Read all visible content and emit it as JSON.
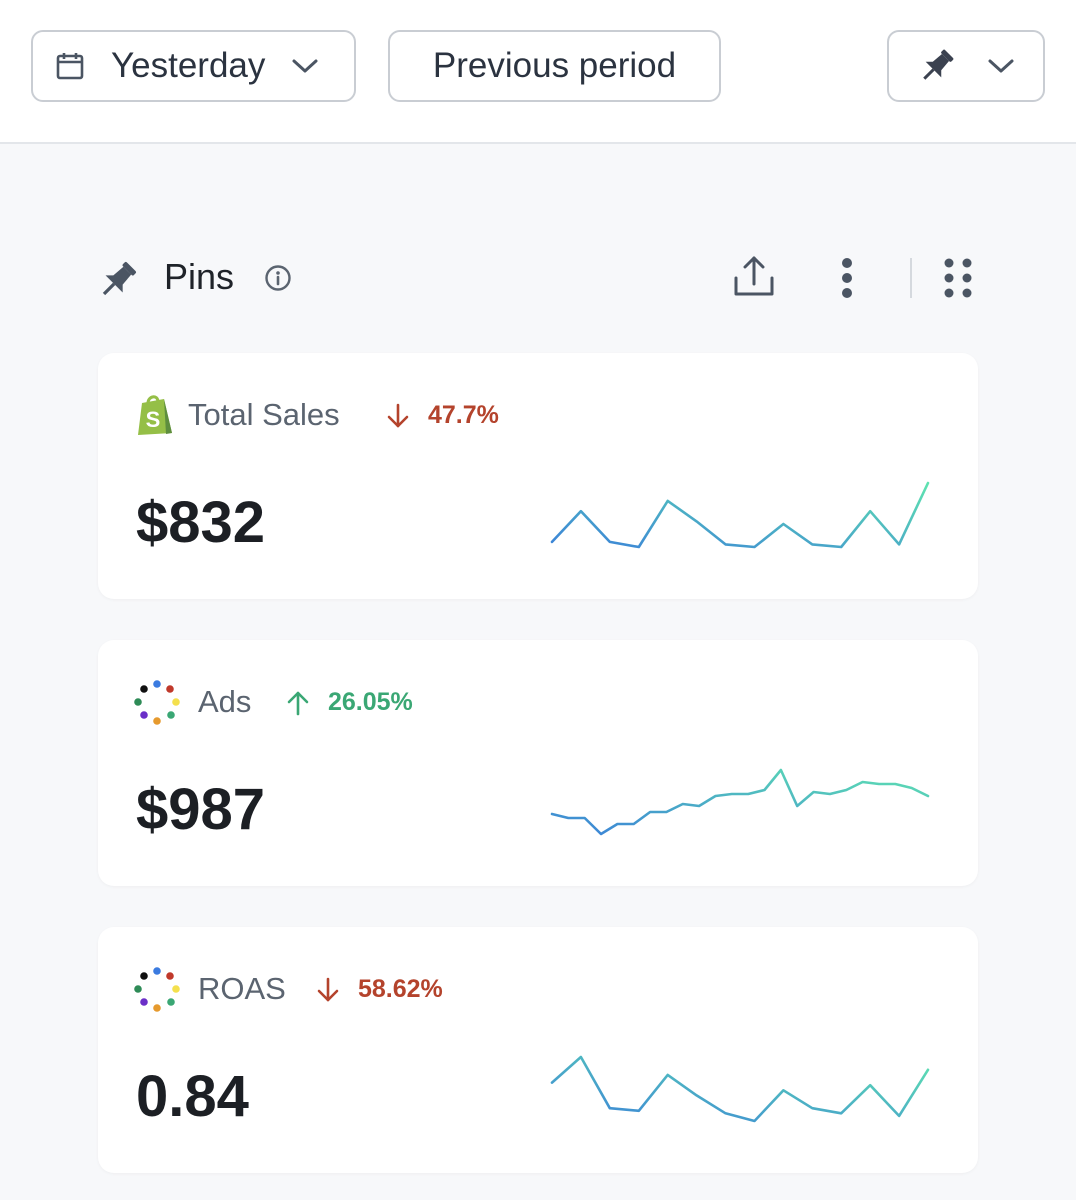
{
  "toolbar": {
    "date_range": "Yesterday",
    "compare": "Previous period"
  },
  "pins": {
    "title": "Pins"
  },
  "colors": {
    "down": "#b4432c",
    "up": "#3aa774",
    "spark_start": "#3b82d8",
    "spark_end": "#5fe3b0"
  },
  "cards": [
    {
      "name": "Total Sales",
      "source_icon": "shopify-icon",
      "direction": "down",
      "delta": "47.7%",
      "value": "$832",
      "spark": [
        2,
        14,
        2,
        0,
        18,
        10,
        1,
        0,
        9,
        1,
        0,
        14,
        1,
        25
      ]
    },
    {
      "name": "Ads",
      "source_icon": "ads-dots-icon",
      "direction": "up",
      "delta": "26.05%",
      "value": "$987",
      "spark": [
        10,
        8,
        8,
        0,
        5,
        5,
        11,
        11,
        15,
        14,
        19,
        20,
        20,
        22,
        32,
        14,
        21,
        20,
        22,
        26,
        25,
        25,
        23,
        19
      ]
    },
    {
      "name": "ROAS",
      "source_icon": "ads-dots-icon",
      "direction": "down",
      "delta": "58.62%",
      "value": "0.84",
      "spark": [
        15,
        25,
        5,
        4,
        18,
        10,
        3,
        0,
        12,
        5,
        3,
        14,
        2,
        20
      ]
    }
  ]
}
